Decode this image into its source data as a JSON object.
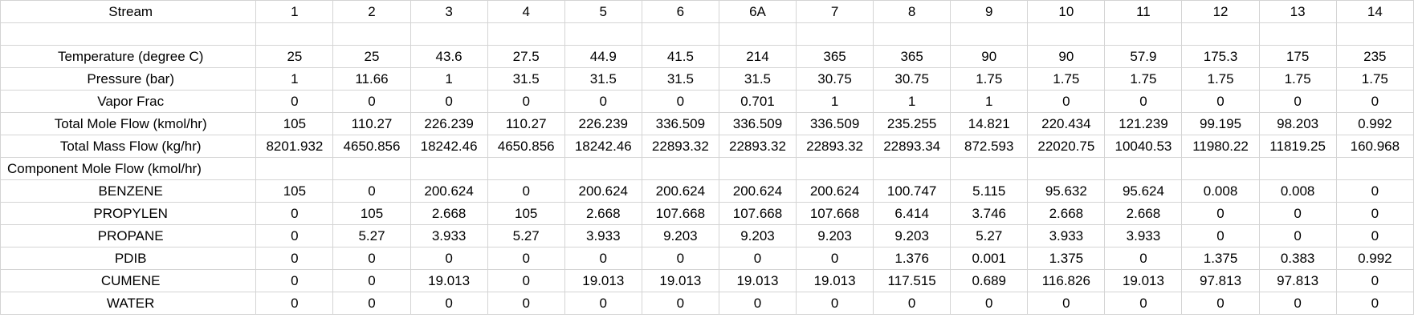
{
  "rows": [
    {
      "label": "Stream",
      "values": [
        "1",
        "2",
        "3",
        "4",
        "5",
        "6",
        "6A",
        "7",
        "8",
        "9",
        "10",
        "11",
        "12",
        "13",
        "14"
      ]
    },
    {
      "label": "",
      "values": [
        "",
        "",
        "",
        "",
        "",
        "",
        "",
        "",
        "",
        "",
        "",
        "",
        "",
        "",
        ""
      ]
    },
    {
      "label": "Temperature (degree C)",
      "values": [
        "25",
        "25",
        "43.6",
        "27.5",
        "44.9",
        "41.5",
        "214",
        "365",
        "365",
        "90",
        "90",
        "57.9",
        "175.3",
        "175",
        "235"
      ]
    },
    {
      "label": "Pressure (bar)",
      "values": [
        "1",
        "11.66",
        "1",
        "31.5",
        "31.5",
        "31.5",
        "31.5",
        "30.75",
        "30.75",
        "1.75",
        "1.75",
        "1.75",
        "1.75",
        "1.75",
        "1.75"
      ]
    },
    {
      "label": "Vapor Frac",
      "values": [
        "0",
        "0",
        "0",
        "0",
        "0",
        "0",
        "0.701",
        "1",
        "1",
        "1",
        "0",
        "0",
        "0",
        "0",
        "0"
      ]
    },
    {
      "label": "Total Mole Flow (kmol/hr)",
      "values": [
        "105",
        "110.27",
        "226.239",
        "110.27",
        "226.239",
        "336.509",
        "336.509",
        "336.509",
        "235.255",
        "14.821",
        "220.434",
        "121.239",
        "99.195",
        "98.203",
        "0.992"
      ]
    },
    {
      "label": "Total Mass Flow (kg/hr)",
      "values": [
        "8201.932",
        "4650.856",
        "18242.46",
        "4650.856",
        "18242.46",
        "22893.32",
        "22893.32",
        "22893.32",
        "22893.34",
        "872.593",
        "22020.75",
        "10040.53",
        "11980.22",
        "11819.25",
        "160.968"
      ]
    },
    {
      "label": "Component Mole Flow (kmol/hr)",
      "left": true,
      "values": [
        "",
        "",
        "",
        "",
        "",
        "",
        "",
        "",
        "",
        "",
        "",
        "",
        "",
        "",
        ""
      ]
    },
    {
      "label": "BENZENE",
      "values": [
        "105",
        "0",
        "200.624",
        "0",
        "200.624",
        "200.624",
        "200.624",
        "200.624",
        "100.747",
        "5.115",
        "95.632",
        "95.624",
        "0.008",
        "0.008",
        "0"
      ]
    },
    {
      "label": "PROPYLEN",
      "values": [
        "0",
        "105",
        "2.668",
        "105",
        "2.668",
        "107.668",
        "107.668",
        "107.668",
        "6.414",
        "3.746",
        "2.668",
        "2.668",
        "0",
        "0",
        "0"
      ]
    },
    {
      "label": "PROPANE",
      "values": [
        "0",
        "5.27",
        "3.933",
        "5.27",
        "3.933",
        "9.203",
        "9.203",
        "9.203",
        "9.203",
        "5.27",
        "3.933",
        "3.933",
        "0",
        "0",
        "0"
      ]
    },
    {
      "label": "PDIB",
      "values": [
        "0",
        "0",
        "0",
        "0",
        "0",
        "0",
        "0",
        "0",
        "1.376",
        "0.001",
        "1.375",
        "0",
        "1.375",
        "0.383",
        "0.992"
      ]
    },
    {
      "label": "CUMENE",
      "values": [
        "0",
        "0",
        "19.013",
        "0",
        "19.013",
        "19.013",
        "19.013",
        "19.013",
        "117.515",
        "0.689",
        "116.826",
        "19.013",
        "97.813",
        "97.813",
        "0"
      ]
    },
    {
      "label": "WATER",
      "values": [
        "0",
        "0",
        "0",
        "0",
        "0",
        "0",
        "0",
        "0",
        "0",
        "0",
        "0",
        "0",
        "0",
        "0",
        "0"
      ]
    }
  ]
}
